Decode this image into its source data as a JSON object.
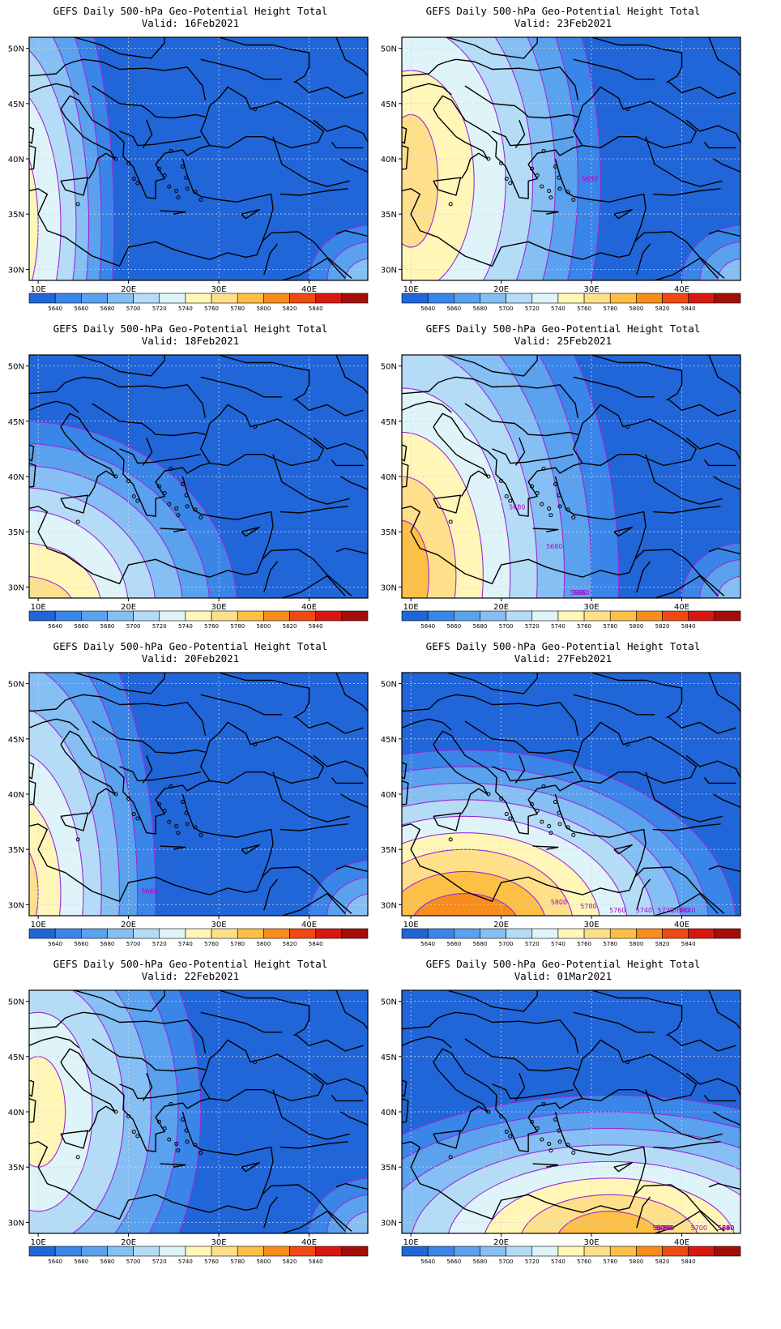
{
  "title_line1": "GEFS Daily 500-hPa Geo-Potential Height Total",
  "valid_prefix": "Valid:",
  "lat_labels": [
    "50N",
    "45N",
    "40N",
    "35N",
    "30N"
  ],
  "lon_labels": [
    "10E",
    "20E",
    "30E",
    "40E"
  ],
  "colorbar": {
    "labels": [
      "5640",
      "5660",
      "5680",
      "5700",
      "5720",
      "5740",
      "5760",
      "5780",
      "5800",
      "5820",
      "5840"
    ],
    "colors": [
      "#2166d8",
      "#3a85e8",
      "#5aa1ee",
      "#85bff3",
      "#b5dcf7",
      "#dff4f9",
      "#fff6b8",
      "#ffe08a",
      "#fdbf46",
      "#f98d1c",
      "#ef4a14",
      "#d81810",
      "#a50d08"
    ]
  },
  "contour_color": "#9b28d6",
  "panels": [
    {
      "date": "16Feb2021",
      "labels": []
    },
    {
      "date": "23Feb2021",
      "labels": [
        "5680"
      ]
    },
    {
      "date": "18Feb2021",
      "labels": []
    },
    {
      "date": "25Feb2021",
      "labels": [
        "5660",
        "5680",
        "5680",
        "5680"
      ]
    },
    {
      "date": "20Feb2021",
      "labels": [
        "5660"
      ]
    },
    {
      "date": "27Feb2021",
      "labels": [
        "5640",
        "5680",
        "5720",
        "5740",
        "5760",
        "5780",
        "5800"
      ]
    },
    {
      "date": "22Feb2021",
      "labels": []
    },
    {
      "date": "01Mar2021",
      "labels": [
        "5680",
        "5700",
        "5720",
        "5640",
        "5660",
        "5680",
        "5700",
        "5720",
        "5740",
        "5760",
        "5780",
        "5800"
      ]
    }
  ]
}
